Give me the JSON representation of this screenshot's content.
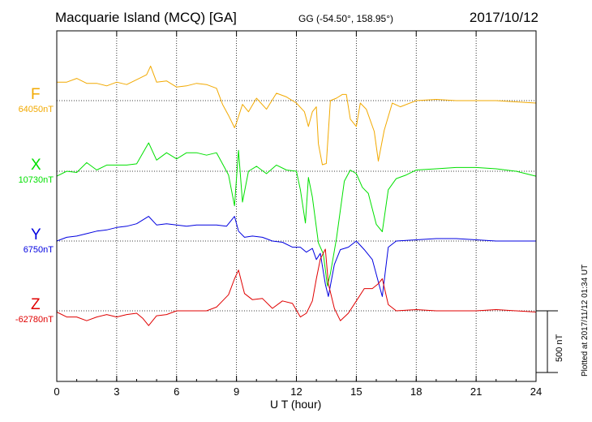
{
  "header": {
    "title": "Macquarie Island (MCQ)  [GA]",
    "coords": "GG (-54.50°, 158.95°)",
    "date": "2017/10/12"
  },
  "plotted_note": "Plotted at 2017/11/12 01:34  UT",
  "scale_label": "500 nT",
  "chart_data": {
    "type": "line",
    "title": "Macquarie Island (MCQ)  [GA]",
    "xlabel": "U T (hour)",
    "ylabel": "",
    "xlim": [
      0,
      24
    ],
    "x_ticks": [
      0,
      3,
      6,
      9,
      12,
      15,
      18,
      21,
      24
    ],
    "grid": true,
    "scale_bar_nT": 500,
    "series": [
      {
        "name": "F",
        "baseline_label": "64050nT",
        "baseline": 64050,
        "color": "#f2a900",
        "points": [
          [
            0,
            64200
          ],
          [
            0.5,
            64200
          ],
          [
            1,
            64230
          ],
          [
            1.5,
            64190
          ],
          [
            2,
            64190
          ],
          [
            2.5,
            64170
          ],
          [
            3,
            64200
          ],
          [
            3.5,
            64180
          ],
          [
            4,
            64220
          ],
          [
            4.5,
            64260
          ],
          [
            4.7,
            64330
          ],
          [
            5,
            64200
          ],
          [
            5.5,
            64210
          ],
          [
            6,
            64160
          ],
          [
            6.5,
            64170
          ],
          [
            7,
            64190
          ],
          [
            7.5,
            64180
          ],
          [
            8,
            64150
          ],
          [
            8.3,
            64020
          ],
          [
            8.6,
            63930
          ],
          [
            8.9,
            63830
          ],
          [
            9,
            63870
          ],
          [
            9.3,
            64020
          ],
          [
            9.6,
            63960
          ],
          [
            10,
            64070
          ],
          [
            10.5,
            63980
          ],
          [
            11,
            64110
          ],
          [
            11.5,
            64080
          ],
          [
            12,
            64030
          ],
          [
            12.4,
            63960
          ],
          [
            12.6,
            63840
          ],
          [
            12.8,
            63960
          ],
          [
            13,
            64000
          ],
          [
            13.1,
            63700
          ],
          [
            13.3,
            63530
          ],
          [
            13.5,
            63540
          ],
          [
            13.7,
            64050
          ],
          [
            14,
            64070
          ],
          [
            14.3,
            64100
          ],
          [
            14.5,
            64100
          ],
          [
            14.7,
            63900
          ],
          [
            15,
            63840
          ],
          [
            15.2,
            64030
          ],
          [
            15.5,
            63980
          ],
          [
            15.9,
            63800
          ],
          [
            16.1,
            63560
          ],
          [
            16.4,
            63810
          ],
          [
            16.8,
            64030
          ],
          [
            17.2,
            64000
          ],
          [
            18,
            64050
          ],
          [
            19,
            64060
          ],
          [
            20,
            64050
          ],
          [
            21,
            64050
          ],
          [
            22,
            64050
          ],
          [
            23,
            64040
          ],
          [
            24,
            64030
          ]
        ]
      },
      {
        "name": "X",
        "baseline_label": "10730nT",
        "baseline": 10730,
        "color": "#00e000",
        "points": [
          [
            0,
            10690
          ],
          [
            0.5,
            10730
          ],
          [
            1,
            10720
          ],
          [
            1.5,
            10800
          ],
          [
            2,
            10740
          ],
          [
            2.5,
            10780
          ],
          [
            3,
            10780
          ],
          [
            3.5,
            10780
          ],
          [
            4,
            10790
          ],
          [
            4.6,
            10960
          ],
          [
            5,
            10820
          ],
          [
            5.5,
            10880
          ],
          [
            6,
            10830
          ],
          [
            6.5,
            10880
          ],
          [
            7,
            10880
          ],
          [
            7.5,
            10860
          ],
          [
            8,
            10880
          ],
          [
            8.3,
            10790
          ],
          [
            8.6,
            10700
          ],
          [
            8.9,
            10450
          ],
          [
            9.1,
            10900
          ],
          [
            9.3,
            10480
          ],
          [
            9.6,
            10730
          ],
          [
            10,
            10770
          ],
          [
            10.5,
            10710
          ],
          [
            11,
            10780
          ],
          [
            11.5,
            10740
          ],
          [
            12,
            10730
          ],
          [
            12.2,
            10580
          ],
          [
            12.45,
            10310
          ],
          [
            12.6,
            10680
          ],
          [
            12.8,
            10520
          ],
          [
            13.1,
            10150
          ],
          [
            13.35,
            10060
          ],
          [
            13.55,
            9800
          ],
          [
            13.7,
            9900
          ],
          [
            14,
            10180
          ],
          [
            14.4,
            10650
          ],
          [
            14.7,
            10740
          ],
          [
            15,
            10710
          ],
          [
            15.3,
            10600
          ],
          [
            15.6,
            10550
          ],
          [
            16,
            10300
          ],
          [
            16.3,
            10240
          ],
          [
            16.6,
            10580
          ],
          [
            17,
            10670
          ],
          [
            17.5,
            10700
          ],
          [
            18,
            10740
          ],
          [
            19,
            10750
          ],
          [
            20,
            10760
          ],
          [
            21,
            10760
          ],
          [
            22,
            10750
          ],
          [
            23,
            10730
          ],
          [
            24,
            10690
          ]
        ]
      },
      {
        "name": "Y",
        "baseline_label": "6750nT",
        "baseline": 6750,
        "color": "#0000e0",
        "points": [
          [
            0,
            6750
          ],
          [
            0.5,
            6780
          ],
          [
            1,
            6790
          ],
          [
            1.5,
            6810
          ],
          [
            2,
            6830
          ],
          [
            2.5,
            6840
          ],
          [
            3,
            6860
          ],
          [
            3.5,
            6870
          ],
          [
            4,
            6890
          ],
          [
            4.6,
            6950
          ],
          [
            5,
            6880
          ],
          [
            5.5,
            6890
          ],
          [
            6,
            6880
          ],
          [
            6.5,
            6870
          ],
          [
            7,
            6880
          ],
          [
            7.5,
            6880
          ],
          [
            8,
            6880
          ],
          [
            8.5,
            6870
          ],
          [
            8.9,
            6950
          ],
          [
            9.1,
            6830
          ],
          [
            9.4,
            6780
          ],
          [
            9.8,
            6790
          ],
          [
            10.3,
            6780
          ],
          [
            10.8,
            6750
          ],
          [
            11.3,
            6740
          ],
          [
            11.8,
            6700
          ],
          [
            12.2,
            6700
          ],
          [
            12.5,
            6660
          ],
          [
            12.8,
            6690
          ],
          [
            13,
            6600
          ],
          [
            13.2,
            6650
          ],
          [
            13.45,
            6400
          ],
          [
            13.6,
            6300
          ],
          [
            13.9,
            6560
          ],
          [
            14.2,
            6680
          ],
          [
            14.6,
            6700
          ],
          [
            15,
            6750
          ],
          [
            15.4,
            6680
          ],
          [
            15.8,
            6600
          ],
          [
            16.1,
            6420
          ],
          [
            16.3,
            6300
          ],
          [
            16.6,
            6700
          ],
          [
            17,
            6750
          ],
          [
            18,
            6760
          ],
          [
            19,
            6770
          ],
          [
            20,
            6770
          ],
          [
            21,
            6760
          ],
          [
            22,
            6750
          ],
          [
            23,
            6750
          ],
          [
            24,
            6750
          ]
        ]
      },
      {
        "name": "Z",
        "baseline_label": "-62780nT",
        "baseline": -62780,
        "color": "#e00000",
        "points": [
          [
            0,
            -62790
          ],
          [
            0.5,
            -62830
          ],
          [
            1,
            -62830
          ],
          [
            1.5,
            -62860
          ],
          [
            2,
            -62830
          ],
          [
            2.5,
            -62810
          ],
          [
            3,
            -62830
          ],
          [
            3.5,
            -62810
          ],
          [
            4,
            -62800
          ],
          [
            4.3,
            -62840
          ],
          [
            4.6,
            -62900
          ],
          [
            5,
            -62820
          ],
          [
            5.5,
            -62810
          ],
          [
            6,
            -62780
          ],
          [
            6.5,
            -62780
          ],
          [
            7,
            -62780
          ],
          [
            7.5,
            -62780
          ],
          [
            8,
            -62750
          ],
          [
            8.3,
            -62700
          ],
          [
            8.6,
            -62650
          ],
          [
            8.9,
            -62520
          ],
          [
            9.1,
            -62450
          ],
          [
            9.4,
            -62640
          ],
          [
            9.8,
            -62690
          ],
          [
            10.3,
            -62680
          ],
          [
            10.8,
            -62760
          ],
          [
            11.3,
            -62700
          ],
          [
            11.8,
            -62720
          ],
          [
            12.2,
            -62830
          ],
          [
            12.5,
            -62800
          ],
          [
            12.8,
            -62700
          ],
          [
            13,
            -62520
          ],
          [
            13.2,
            -62360
          ],
          [
            13.45,
            -62280
          ],
          [
            13.6,
            -62560
          ],
          [
            13.9,
            -62760
          ],
          [
            14.2,
            -62860
          ],
          [
            14.6,
            -62800
          ],
          [
            15,
            -62700
          ],
          [
            15.4,
            -62600
          ],
          [
            15.8,
            -62600
          ],
          [
            16.1,
            -62560
          ],
          [
            16.3,
            -62520
          ],
          [
            16.6,
            -62730
          ],
          [
            17,
            -62780
          ],
          [
            18,
            -62770
          ],
          [
            19,
            -62780
          ],
          [
            20,
            -62780
          ],
          [
            21,
            -62780
          ],
          [
            22,
            -62770
          ],
          [
            23,
            -62780
          ],
          [
            24,
            -62790
          ]
        ]
      }
    ]
  }
}
